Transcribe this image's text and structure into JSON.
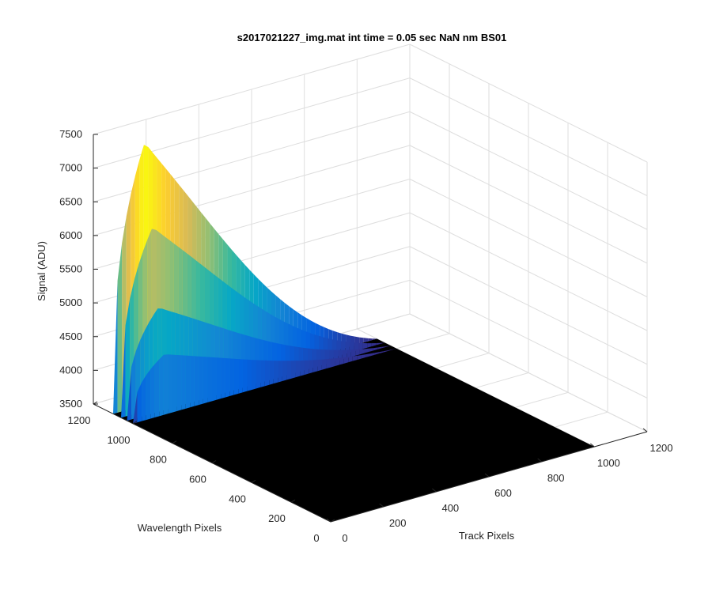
{
  "chart_data": {
    "type": "surface",
    "title": "s2017021227_img.mat int time = 0.05 sec  NaN nm BS01",
    "xlabel": "Track Pixels",
    "ylabel": "Wavelength Pixels",
    "zlabel": "Signal (ADU)",
    "xlim": [
      0,
      1200
    ],
    "ylim": [
      0,
      1200
    ],
    "zlim": [
      3500,
      7500
    ],
    "x_ticks": [
      "0",
      "200",
      "400",
      "600",
      "800",
      "1000",
      "1200"
    ],
    "y_ticks": [
      "0",
      "200",
      "400",
      "600",
      "800",
      "1000",
      "1200"
    ],
    "z_ticks": [
      "3500",
      "4000",
      "4500",
      "5000",
      "5500",
      "6000",
      "6500",
      "7000",
      "7500"
    ],
    "grid": true,
    "colormap": [
      "#352a87",
      "#0363e1",
      "#1485d4",
      "#06a7c6",
      "#38b99e",
      "#92bf73",
      "#d9ba56",
      "#fcce2e",
      "#f9fb0e"
    ],
    "baseline_signal": 3500,
    "peak_signal": 7400,
    "signal_region": {
      "track_range": [
        0,
        1000
      ],
      "wavelength_range": [
        1000,
        1100
      ],
      "peak_track": 120,
      "secondary_peak_signal": 5050,
      "tertiary_peak_signal": 4400
    }
  }
}
